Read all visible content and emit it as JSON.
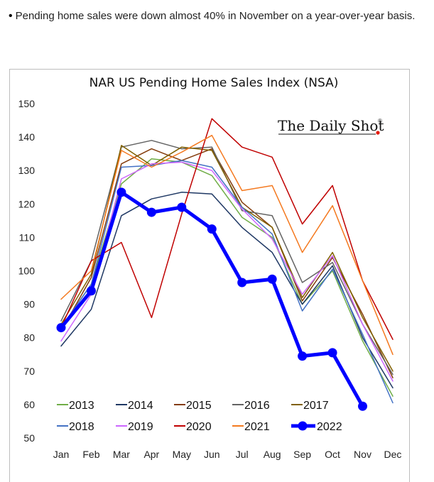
{
  "intro": {
    "bullet": "•",
    "text": "Pending home sales were down almost 40% in November on a year-over-year basis."
  },
  "brand": {
    "text": "The Daily Shot",
    "mark": "®",
    "accent": "#e31b0e"
  },
  "chart_data": {
    "type": "line",
    "title": "NAR US Pending Home Sales Index (NSA)",
    "xlabel": "",
    "ylabel": "",
    "categories": [
      "Jan",
      "Feb",
      "Mar",
      "Apr",
      "May",
      "Jun",
      "Jul",
      "Aug",
      "Sep",
      "Oct",
      "Nov",
      "Dec"
    ],
    "ylim": [
      50,
      150
    ],
    "yticks": [
      50,
      60,
      70,
      80,
      90,
      100,
      110,
      120,
      130,
      140,
      150
    ],
    "grid": false,
    "legend_position": "bottom",
    "series": [
      {
        "name": "2013",
        "color": "#70ad47",
        "width": 1.5,
        "values": [
          83,
          96,
          126,
          133.5,
          132.5,
          128.5,
          116,
          110,
          90,
          100,
          79,
          62.5
        ]
      },
      {
        "name": "2014",
        "color": "#1f3864",
        "width": 1.5,
        "values": [
          77.5,
          88.5,
          116.5,
          121.5,
          123.5,
          123,
          113,
          105.5,
          90,
          101.5,
          80,
          65
        ]
      },
      {
        "name": "2015",
        "color": "#843c0c",
        "width": 1.5,
        "values": [
          82,
          98,
          132,
          136.5,
          133,
          136.5,
          120.5,
          113,
          91,
          104,
          87,
          68
        ]
      },
      {
        "name": "2016",
        "color": "#636363",
        "width": 1.5,
        "values": [
          85,
          103,
          137,
          139,
          136.5,
          137,
          118,
          116.5,
          96.5,
          102.5,
          84,
          69
        ]
      },
      {
        "name": "2017",
        "color": "#806000",
        "width": 1.5,
        "values": [
          84,
          99,
          137.5,
          131.5,
          137,
          136,
          119,
          113,
          92,
          105.5,
          86,
          70
        ]
      },
      {
        "name": "2018",
        "color": "#4472c4",
        "width": 1.5,
        "values": [
          83,
          96,
          131,
          131.5,
          133,
          131,
          119,
          111,
          88,
          100.5,
          81,
          60.5
        ]
      },
      {
        "name": "2019",
        "color": "#cc66ff",
        "width": 1.5,
        "values": [
          79,
          93,
          127.5,
          132,
          132.5,
          130,
          118.5,
          109.5,
          93,
          104.5,
          84,
          67
        ]
      },
      {
        "name": "2020",
        "color": "#c00000",
        "width": 1.5,
        "values": [
          83,
          103,
          108.5,
          86,
          117,
          145.5,
          137,
          134,
          114,
          125.5,
          97,
          79.5
        ]
      },
      {
        "name": "2021",
        "color": "#f4791f",
        "width": 1.5,
        "values": [
          91.5,
          100,
          136,
          131,
          135.5,
          140.5,
          124,
          125.5,
          105.5,
          119.5,
          97,
          75
        ]
      },
      {
        "name": "2022",
        "color": "#0000ff",
        "width": 5,
        "marker": true,
        "values": [
          83,
          94,
          123.5,
          117.5,
          119,
          112.5,
          96.5,
          97.5,
          74.5,
          75.5,
          59.5,
          null
        ]
      }
    ]
  }
}
